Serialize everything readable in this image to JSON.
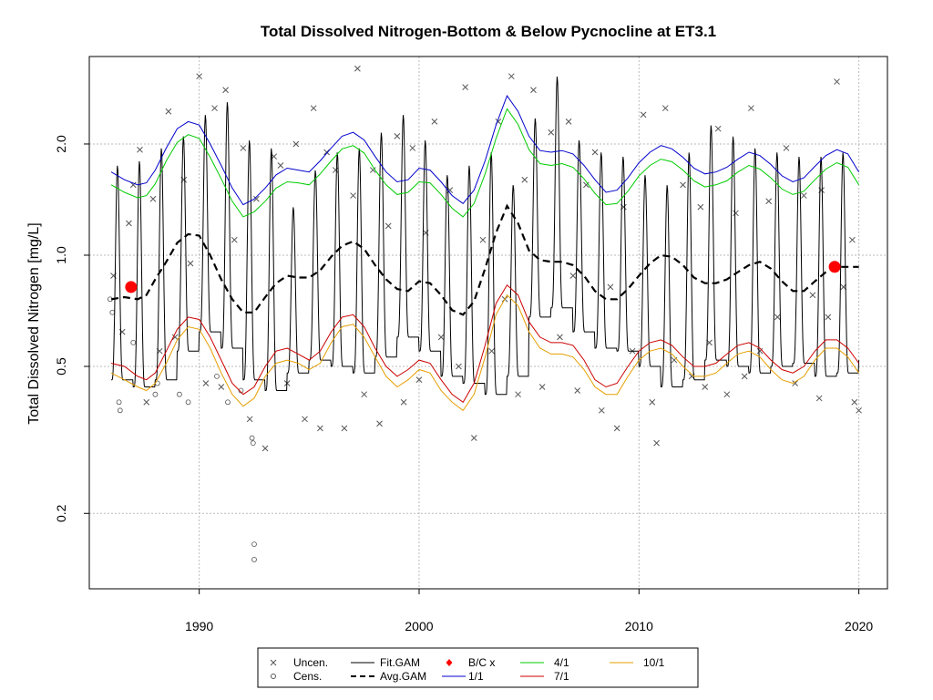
{
  "chart_data": {
    "type": "line",
    "title": "Total Dissolved Nitrogen-Bottom & Below Pycnocline at ET3.1",
    "xlabel": "",
    "ylabel": "Total Dissolved Nitrogen [mg/L]",
    "x_range": [
      1985,
      2021.3
    ],
    "ylim": [
      0.125,
      3.45
    ],
    "y_scale": "log",
    "x_ticks": [
      1990,
      2000,
      2010,
      2020
    ],
    "y_ticks": [
      0.2,
      0.5,
      1.0,
      2.0
    ],
    "y_tick_labels": [
      "0.2",
      "0.5",
      "1.0",
      "2.0"
    ],
    "grid": true,
    "legend_position": "bottom",
    "colors": {
      "fit_gam": "#000000",
      "avg_gam": "#000000",
      "one_one": "#0000cc",
      "four_one": "#00cc00",
      "seven_one": "#cc0000",
      "ten_one": "#e69f00",
      "bc": "#ff0000",
      "points": "#555555",
      "grid": "#bbbbbb"
    },
    "legend": [
      {
        "key": "uncen",
        "label": "Uncen.",
        "symbol": "x"
      },
      {
        "key": "cens",
        "label": "Cens.",
        "symbol": "o"
      },
      {
        "key": "fit",
        "label": "Fit.GAM",
        "symbol": "line"
      },
      {
        "key": "avg",
        "label": "Avg.GAM",
        "symbol": "dash"
      },
      {
        "key": "bc",
        "label": "B/C x",
        "symbol": "diamond"
      },
      {
        "key": "s11",
        "label": "1/1",
        "symbol": "line"
      },
      {
        "key": "s41",
        "label": "4/1",
        "symbol": "line"
      },
      {
        "key": "s71",
        "label": "7/1",
        "symbol": "line"
      },
      {
        "key": "s101",
        "label": "10/1",
        "symbol": "line"
      }
    ],
    "avg_gam": {
      "x": [
        1986.0,
        1986.6,
        1987.2,
        1987.6,
        1988.0,
        1988.5,
        1989.0,
        1989.5,
        1990.0,
        1990.5,
        1991.0,
        1991.5,
        1992.0,
        1992.5,
        1993.0,
        1993.5,
        1994.0,
        1994.5,
        1995.0,
        1995.5,
        1996.0,
        1996.5,
        1997.0,
        1997.5,
        1998.0,
        1998.5,
        1999.0,
        1999.5,
        2000.0,
        2000.5,
        2001.0,
        2001.5,
        2002.0,
        2002.5,
        2003.0,
        2003.5,
        2004.0,
        2004.5,
        2005.0,
        2005.5,
        2006.0,
        2006.5,
        2007.0,
        2007.5,
        2008.0,
        2008.5,
        2009.0,
        2009.5,
        2010.0,
        2010.5,
        2011.0,
        2011.5,
        2012.0,
        2012.5,
        2013.0,
        2013.5,
        2014.0,
        2014.5,
        2015.0,
        2015.5,
        2016.0,
        2016.5,
        2017.0,
        2017.5,
        2018.0,
        2018.5,
        2019.0,
        2019.5,
        2020.0
      ],
      "y": [
        0.76,
        0.77,
        0.76,
        0.78,
        0.86,
        0.96,
        1.08,
        1.14,
        1.13,
        1.0,
        0.86,
        0.76,
        0.7,
        0.7,
        0.77,
        0.84,
        0.88,
        0.87,
        0.87,
        0.91,
        0.99,
        1.06,
        1.09,
        1.04,
        0.94,
        0.86,
        0.81,
        0.8,
        0.85,
        0.84,
        0.78,
        0.71,
        0.69,
        0.75,
        0.92,
        1.15,
        1.36,
        1.22,
        1.03,
        0.97,
        0.96,
        0.96,
        0.94,
        0.88,
        0.8,
        0.76,
        0.76,
        0.81,
        0.88,
        0.95,
        1.0,
        0.99,
        0.94,
        0.87,
        0.84,
        0.84,
        0.86,
        0.9,
        0.94,
        0.96,
        0.92,
        0.85,
        0.8,
        0.8,
        0.85,
        0.9,
        0.93,
        0.93,
        0.93
      ]
    },
    "curve_11": {
      "x": [
        1986.0,
        1986.6,
        1987.2,
        1987.6,
        1988.0,
        1988.5,
        1989.0,
        1989.5,
        1990.0,
        1990.5,
        1991.0,
        1991.5,
        1992.0,
        1992.5,
        1993.0,
        1993.5,
        1994.0,
        1994.5,
        1995.0,
        1995.5,
        1996.0,
        1996.5,
        1997.0,
        1997.5,
        1998.0,
        1998.5,
        1999.0,
        1999.5,
        2000.0,
        2000.5,
        2001.0,
        2001.5,
        2002.0,
        2002.5,
        2003.0,
        2003.5,
        2004.0,
        2004.5,
        2005.0,
        2005.5,
        2006.0,
        2006.5,
        2007.0,
        2007.5,
        2008.0,
        2008.5,
        2009.0,
        2009.5,
        2010.0,
        2010.5,
        2011.0,
        2011.5,
        2012.0,
        2012.5,
        2013.0,
        2013.5,
        2014.0,
        2014.5,
        2015.0,
        2015.5,
        2016.0,
        2016.5,
        2017.0,
        2017.5,
        2018.0,
        2018.5,
        2019.0,
        2019.5,
        2020.0
      ],
      "y": [
        1.68,
        1.6,
        1.55,
        1.57,
        1.7,
        1.95,
        2.2,
        2.3,
        2.25,
        2.0,
        1.75,
        1.52,
        1.37,
        1.42,
        1.52,
        1.65,
        1.72,
        1.7,
        1.68,
        1.8,
        1.95,
        2.1,
        2.15,
        2.05,
        1.85,
        1.68,
        1.58,
        1.6,
        1.72,
        1.7,
        1.58,
        1.45,
        1.38,
        1.5,
        1.8,
        2.25,
        2.7,
        2.45,
        2.1,
        1.92,
        1.9,
        1.92,
        1.88,
        1.75,
        1.6,
        1.48,
        1.5,
        1.62,
        1.78,
        1.9,
        1.98,
        1.94,
        1.84,
        1.72,
        1.66,
        1.68,
        1.73,
        1.82,
        1.9,
        1.86,
        1.76,
        1.64,
        1.58,
        1.62,
        1.74,
        1.86,
        1.93,
        1.88,
        1.68
      ]
    },
    "curve_41": {
      "x": [
        1986.0,
        1986.6,
        1987.2,
        1987.6,
        1988.0,
        1988.5,
        1989.0,
        1989.5,
        1990.0,
        1990.5,
        1991.0,
        1991.5,
        1992.0,
        1992.5,
        1993.0,
        1993.5,
        1994.0,
        1994.5,
        1995.0,
        1995.5,
        1996.0,
        1996.5,
        1997.0,
        1997.5,
        1998.0,
        1998.5,
        1999.0,
        1999.5,
        2000.0,
        2000.5,
        2001.0,
        2001.5,
        2002.0,
        2002.5,
        2003.0,
        2003.5,
        2004.0,
        2004.5,
        2005.0,
        2005.5,
        2006.0,
        2006.5,
        2007.0,
        2007.5,
        2008.0,
        2008.5,
        2009.0,
        2009.5,
        2010.0,
        2010.5,
        2011.0,
        2011.5,
        2012.0,
        2012.5,
        2013.0,
        2013.5,
        2014.0,
        2014.5,
        2015.0,
        2015.5,
        2016.0,
        2016.5,
        2017.0,
        2017.5,
        2018.0,
        2018.5,
        2019.0,
        2019.5,
        2020.0
      ],
      "y": [
        1.55,
        1.48,
        1.43,
        1.45,
        1.56,
        1.8,
        2.02,
        2.12,
        2.07,
        1.84,
        1.61,
        1.4,
        1.27,
        1.31,
        1.4,
        1.52,
        1.58,
        1.57,
        1.55,
        1.66,
        1.8,
        1.94,
        1.98,
        1.89,
        1.7,
        1.55,
        1.46,
        1.48,
        1.58,
        1.57,
        1.46,
        1.34,
        1.27,
        1.38,
        1.66,
        2.07,
        2.49,
        2.26,
        1.93,
        1.77,
        1.75,
        1.77,
        1.73,
        1.61,
        1.47,
        1.37,
        1.38,
        1.49,
        1.64,
        1.75,
        1.82,
        1.79,
        1.7,
        1.59,
        1.53,
        1.55,
        1.59,
        1.68,
        1.75,
        1.71,
        1.62,
        1.51,
        1.46,
        1.49,
        1.6,
        1.71,
        1.78,
        1.73,
        1.55
      ]
    },
    "curve_71": {
      "x": [
        1986.0,
        1986.6,
        1987.2,
        1987.6,
        1988.0,
        1988.5,
        1989.0,
        1989.5,
        1990.0,
        1990.5,
        1991.0,
        1991.5,
        1992.0,
        1992.5,
        1993.0,
        1993.5,
        1994.0,
        1994.5,
        1995.0,
        1995.5,
        1996.0,
        1996.5,
        1997.0,
        1997.5,
        1998.0,
        1998.5,
        1999.0,
        1999.5,
        2000.0,
        2000.5,
        2001.0,
        2001.5,
        2002.0,
        2002.5,
        2003.0,
        2003.5,
        2004.0,
        2004.5,
        2005.0,
        2005.5,
        2006.0,
        2006.5,
        2007.0,
        2007.5,
        2008.0,
        2008.5,
        2009.0,
        2009.5,
        2010.0,
        2010.5,
        2011.0,
        2011.5,
        2012.0,
        2012.5,
        2013.0,
        2013.5,
        2014.0,
        2014.5,
        2015.0,
        2015.5,
        2016.0,
        2016.5,
        2017.0,
        2017.5,
        2018.0,
        2018.5,
        2019.0,
        2019.5,
        2020.0
      ],
      "y": [
        0.51,
        0.5,
        0.47,
        0.46,
        0.48,
        0.55,
        0.63,
        0.68,
        0.67,
        0.6,
        0.52,
        0.45,
        0.42,
        0.44,
        0.5,
        0.55,
        0.56,
        0.54,
        0.52,
        0.55,
        0.62,
        0.68,
        0.69,
        0.64,
        0.56,
        0.5,
        0.47,
        0.49,
        0.52,
        0.51,
        0.46,
        0.42,
        0.4,
        0.45,
        0.57,
        0.74,
        0.83,
        0.78,
        0.66,
        0.6,
        0.58,
        0.58,
        0.57,
        0.52,
        0.46,
        0.44,
        0.45,
        0.5,
        0.55,
        0.58,
        0.59,
        0.57,
        0.53,
        0.5,
        0.5,
        0.51,
        0.54,
        0.57,
        0.58,
        0.56,
        0.52,
        0.49,
        0.48,
        0.5,
        0.55,
        0.59,
        0.59,
        0.56,
        0.51
      ]
    },
    "curve_101": {
      "x": [
        1986.0,
        1986.6,
        1987.2,
        1987.6,
        1988.0,
        1988.5,
        1989.0,
        1989.5,
        1990.0,
        1990.5,
        1991.0,
        1991.5,
        1992.0,
        1992.5,
        1993.0,
        1993.5,
        1994.0,
        1994.5,
        1995.0,
        1995.5,
        1996.0,
        1996.5,
        1997.0,
        1997.5,
        1998.0,
        1998.5,
        1999.0,
        1999.5,
        2000.0,
        2000.5,
        2001.0,
        2001.5,
        2002.0,
        2002.5,
        2003.0,
        2003.5,
        2004.0,
        2004.5,
        2005.0,
        2005.5,
        2006.0,
        2006.5,
        2007.0,
        2007.5,
        2008.0,
        2008.5,
        2009.0,
        2009.5,
        2010.0,
        2010.5,
        2011.0,
        2011.5,
        2012.0,
        2012.5,
        2013.0,
        2013.5,
        2014.0,
        2014.5,
        2015.0,
        2015.5,
        2016.0,
        2016.5,
        2017.0,
        2017.5,
        2018.0,
        2018.5,
        2019.0,
        2019.5,
        2020.0
      ],
      "y": [
        0.48,
        0.46,
        0.44,
        0.43,
        0.45,
        0.51,
        0.59,
        0.64,
        0.63,
        0.56,
        0.48,
        0.42,
        0.39,
        0.41,
        0.47,
        0.51,
        0.52,
        0.51,
        0.49,
        0.51,
        0.58,
        0.64,
        0.65,
        0.6,
        0.53,
        0.47,
        0.44,
        0.46,
        0.49,
        0.48,
        0.43,
        0.4,
        0.38,
        0.42,
        0.53,
        0.69,
        0.78,
        0.73,
        0.62,
        0.56,
        0.54,
        0.54,
        0.53,
        0.49,
        0.44,
        0.42,
        0.42,
        0.47,
        0.52,
        0.55,
        0.56,
        0.54,
        0.5,
        0.47,
        0.47,
        0.48,
        0.51,
        0.54,
        0.55,
        0.53,
        0.49,
        0.46,
        0.45,
        0.47,
        0.52,
        0.56,
        0.56,
        0.53,
        0.48
      ]
    },
    "fit_gam": {
      "note_x_start": 1986.0,
      "x_end": 2020.0,
      "peaks": [
        1.75,
        1.8,
        1.95,
        2.1,
        2.4,
        2.6,
        2.05,
        1.95,
        1.35,
        1.7,
        1.9,
        1.95,
        2.15,
        2.4,
        2.05,
        1.65,
        1.75,
        1.9,
        1.55,
        2.35,
        3.05,
        2.05,
        1.9,
        1.85,
        1.65,
        1.55,
        1.9,
        2.25,
        2.1,
        1.95,
        1.9,
        1.85,
        1.85,
        1.9,
        2.05
      ],
      "troughs": [
        0.46,
        0.44,
        0.46,
        0.55,
        0.62,
        0.56,
        0.46,
        0.43,
        0.48,
        0.52,
        0.5,
        0.48,
        0.53,
        0.6,
        0.55,
        0.47,
        0.45,
        0.42,
        0.47,
        0.68,
        0.72,
        0.62,
        0.56,
        0.55,
        0.5,
        0.44,
        0.46,
        0.52,
        0.5,
        0.48,
        0.5,
        0.51,
        0.47,
        0.48,
        0.52
      ]
    },
    "bc_points": [
      {
        "x": 1986.9,
        "y": 0.82
      },
      {
        "x": 2018.9,
        "y": 0.93
      }
    ],
    "uncensored": [
      [
        1986.1,
        0.88
      ],
      [
        1986.5,
        0.62
      ],
      [
        1986.8,
        1.22
      ],
      [
        1987.0,
        1.55
      ],
      [
        1987.3,
        1.93
      ],
      [
        1987.6,
        0.4
      ],
      [
        1987.9,
        1.42
      ],
      [
        1988.2,
        0.55
      ],
      [
        1988.6,
        2.45
      ],
      [
        1988.9,
        0.6
      ],
      [
        1989.3,
        1.6
      ],
      [
        1989.6,
        0.95
      ],
      [
        1990.0,
        3.05
      ],
      [
        1990.3,
        0.45
      ],
      [
        1990.7,
        2.5
      ],
      [
        1991.0,
        0.44
      ],
      [
        1991.2,
        2.8
      ],
      [
        1991.6,
        1.1
      ],
      [
        1992.0,
        1.95
      ],
      [
        1992.3,
        0.36
      ],
      [
        1992.6,
        1.42
      ],
      [
        1993.0,
        0.3
      ],
      [
        1993.4,
        1.85
      ],
      [
        1993.7,
        1.75
      ],
      [
        1994.0,
        0.45
      ],
      [
        1994.4,
        2.0
      ],
      [
        1994.8,
        0.36
      ],
      [
        1995.2,
        2.5
      ],
      [
        1995.5,
        0.34
      ],
      [
        1995.8,
        1.9
      ],
      [
        1996.2,
        1.7
      ],
      [
        1996.6,
        0.34
      ],
      [
        1997.0,
        1.45
      ],
      [
        1997.2,
        3.2
      ],
      [
        1997.5,
        0.42
      ],
      [
        1997.9,
        1.7
      ],
      [
        1998.2,
        0.35
      ],
      [
        1998.6,
        1.2
      ],
      [
        1999.0,
        2.1
      ],
      [
        1999.3,
        0.4
      ],
      [
        1999.7,
        1.95
      ],
      [
        2000.0,
        0.46
      ],
      [
        2000.3,
        1.15
      ],
      [
        2000.7,
        2.3
      ],
      [
        2001.0,
        0.6
      ],
      [
        2001.4,
        1.5
      ],
      [
        2001.8,
        0.5
      ],
      [
        2002.1,
        2.85
      ],
      [
        2002.5,
        0.32
      ],
      [
        2002.9,
        1.1
      ],
      [
        2003.3,
        0.55
      ],
      [
        2003.6,
        2.3
      ],
      [
        2003.9,
        0.76
      ],
      [
        2004.2,
        3.05
      ],
      [
        2004.5,
        0.42
      ],
      [
        2004.8,
        1.6
      ],
      [
        2005.2,
        2.8
      ],
      [
        2005.6,
        0.44
      ],
      [
        2006.0,
        2.15
      ],
      [
        2006.4,
        0.6
      ],
      [
        2006.8,
        2.3
      ],
      [
        2007.2,
        0.43
      ],
      [
        2007.6,
        1.55
      ],
      [
        2008.0,
        1.9
      ],
      [
        2008.3,
        0.38
      ],
      [
        2008.7,
        0.82
      ],
      [
        2009.0,
        0.34
      ],
      [
        2009.3,
        1.35
      ],
      [
        2009.7,
        0.55
      ],
      [
        2010.2,
        2.4
      ],
      [
        2010.6,
        0.4
      ],
      [
        2010.8,
        0.31
      ],
      [
        2011.2,
        2.5
      ],
      [
        2011.6,
        0.52
      ],
      [
        2012.0,
        1.55
      ],
      [
        2012.4,
        0.47
      ],
      [
        2012.8,
        1.35
      ],
      [
        2013.2,
        0.58
      ],
      [
        2013.6,
        2.2
      ],
      [
        2014.0,
        0.42
      ],
      [
        2014.4,
        1.3
      ],
      [
        2014.8,
        0.47
      ],
      [
        2015.1,
        2.5
      ],
      [
        2015.5,
        0.55
      ],
      [
        2015.9,
        1.4
      ],
      [
        2016.3,
        0.68
      ],
      [
        2016.7,
        1.95
      ],
      [
        2017.1,
        0.45
      ],
      [
        2017.5,
        1.45
      ],
      [
        2017.9,
        0.78
      ],
      [
        2018.3,
        1.5
      ],
      [
        2018.6,
        0.68
      ],
      [
        2019.0,
        2.95
      ],
      [
        2019.3,
        0.82
      ],
      [
        2019.7,
        1.1
      ],
      [
        2020.0,
        0.38
      ],
      [
        2019.8,
        0.4
      ],
      [
        2018.2,
        0.41
      ],
      [
        2013.0,
        0.44
      ],
      [
        2007.0,
        0.88
      ]
    ],
    "censored": [
      [
        1985.95,
        0.76
      ],
      [
        1986.05,
        0.7
      ],
      [
        1986.35,
        0.4
      ],
      [
        1986.4,
        0.38
      ],
      [
        1989.1,
        0.42
      ],
      [
        1989.5,
        0.4
      ],
      [
        1991.9,
        0.43
      ],
      [
        1992.4,
        0.32
      ],
      [
        1992.45,
        0.31
      ],
      [
        1992.5,
        0.165
      ],
      [
        1992.5,
        0.15
      ],
      [
        1987.0,
        0.58
      ],
      [
        1988.0,
        0.42
      ],
      [
        1988.1,
        0.45
      ],
      [
        1990.8,
        0.47
      ],
      [
        1991.3,
        0.4
      ]
    ]
  }
}
